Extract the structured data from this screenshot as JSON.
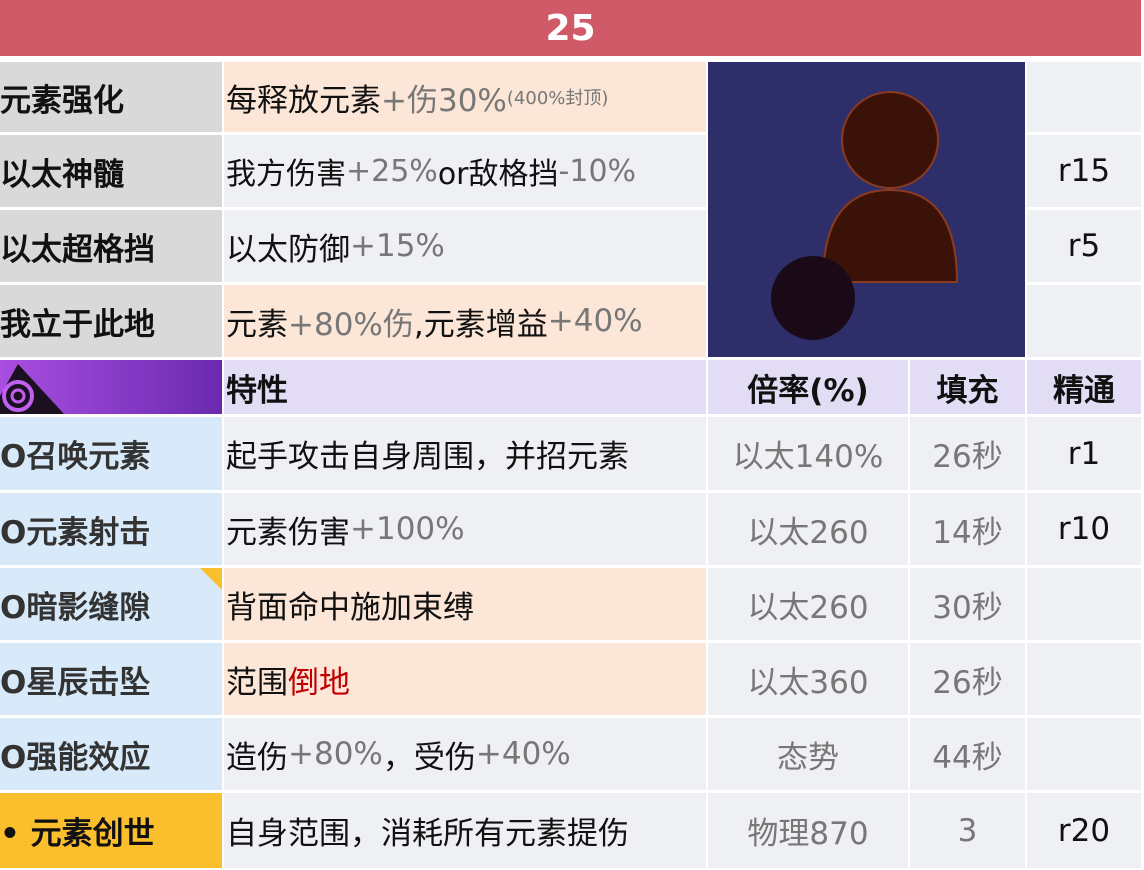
{
  "title": "25",
  "passives": [
    {
      "name": "元素强化",
      "desc": "每释放元素",
      "val": "+伤30%",
      "note": "(400%封顶)",
      "rank": ""
    },
    {
      "name": "以太神髓",
      "desc": "我方伤害",
      "val": "+25%",
      "desc2": "or敌格挡",
      "val2": "-10%",
      "rank": "r15"
    },
    {
      "name": "以太超格挡",
      "desc": "以太防御",
      "val": "+15%",
      "rank": "r5"
    },
    {
      "name": "我立于此地",
      "desc": "元素",
      "val": "+80%伤",
      "desc2": ",元素增益",
      "val2": "+40%",
      "rank": ""
    }
  ],
  "header": {
    "icon": "aether-class-icon",
    "trait": "特性",
    "rate": "倍率(%)",
    "fill": "填充",
    "mastery": "精通"
  },
  "skills": [
    {
      "name": "O召唤元素",
      "desc": "起手攻击自身周围，并招元素",
      "rate": "以太140%",
      "fill": "26秒",
      "mastery": "r1"
    },
    {
      "name": "O元素射击",
      "desc": "元素伤害",
      "desc_val": "+100%",
      "rate": "以太260",
      "fill": "14秒",
      "mastery": "r10"
    },
    {
      "name": "O暗影缝隙",
      "desc": "背面命中施加束缚",
      "rate": "以太260",
      "fill": "30秒",
      "mastery": ""
    },
    {
      "name": "O星辰击坠",
      "desc": "范围",
      "desc_red": "倒地",
      "rate": "以太360",
      "fill": "26秒",
      "mastery": ""
    },
    {
      "name": "O强能效应",
      "desc": "造伤",
      "desc_val": "+80%",
      "desc2": "，受伤",
      "desc_val2": "+40%",
      "rate": "态势",
      "fill": "44秒",
      "mastery": ""
    },
    {
      "name": "• 元素创世",
      "desc": "自身范围，消耗所有元素提伤",
      "rate": "物理870",
      "fill": "3",
      "mastery": "r20"
    }
  ],
  "colors": {
    "title": "#d05a68",
    "highlight": "#c00000",
    "ultimate": "#fbbf2e"
  }
}
